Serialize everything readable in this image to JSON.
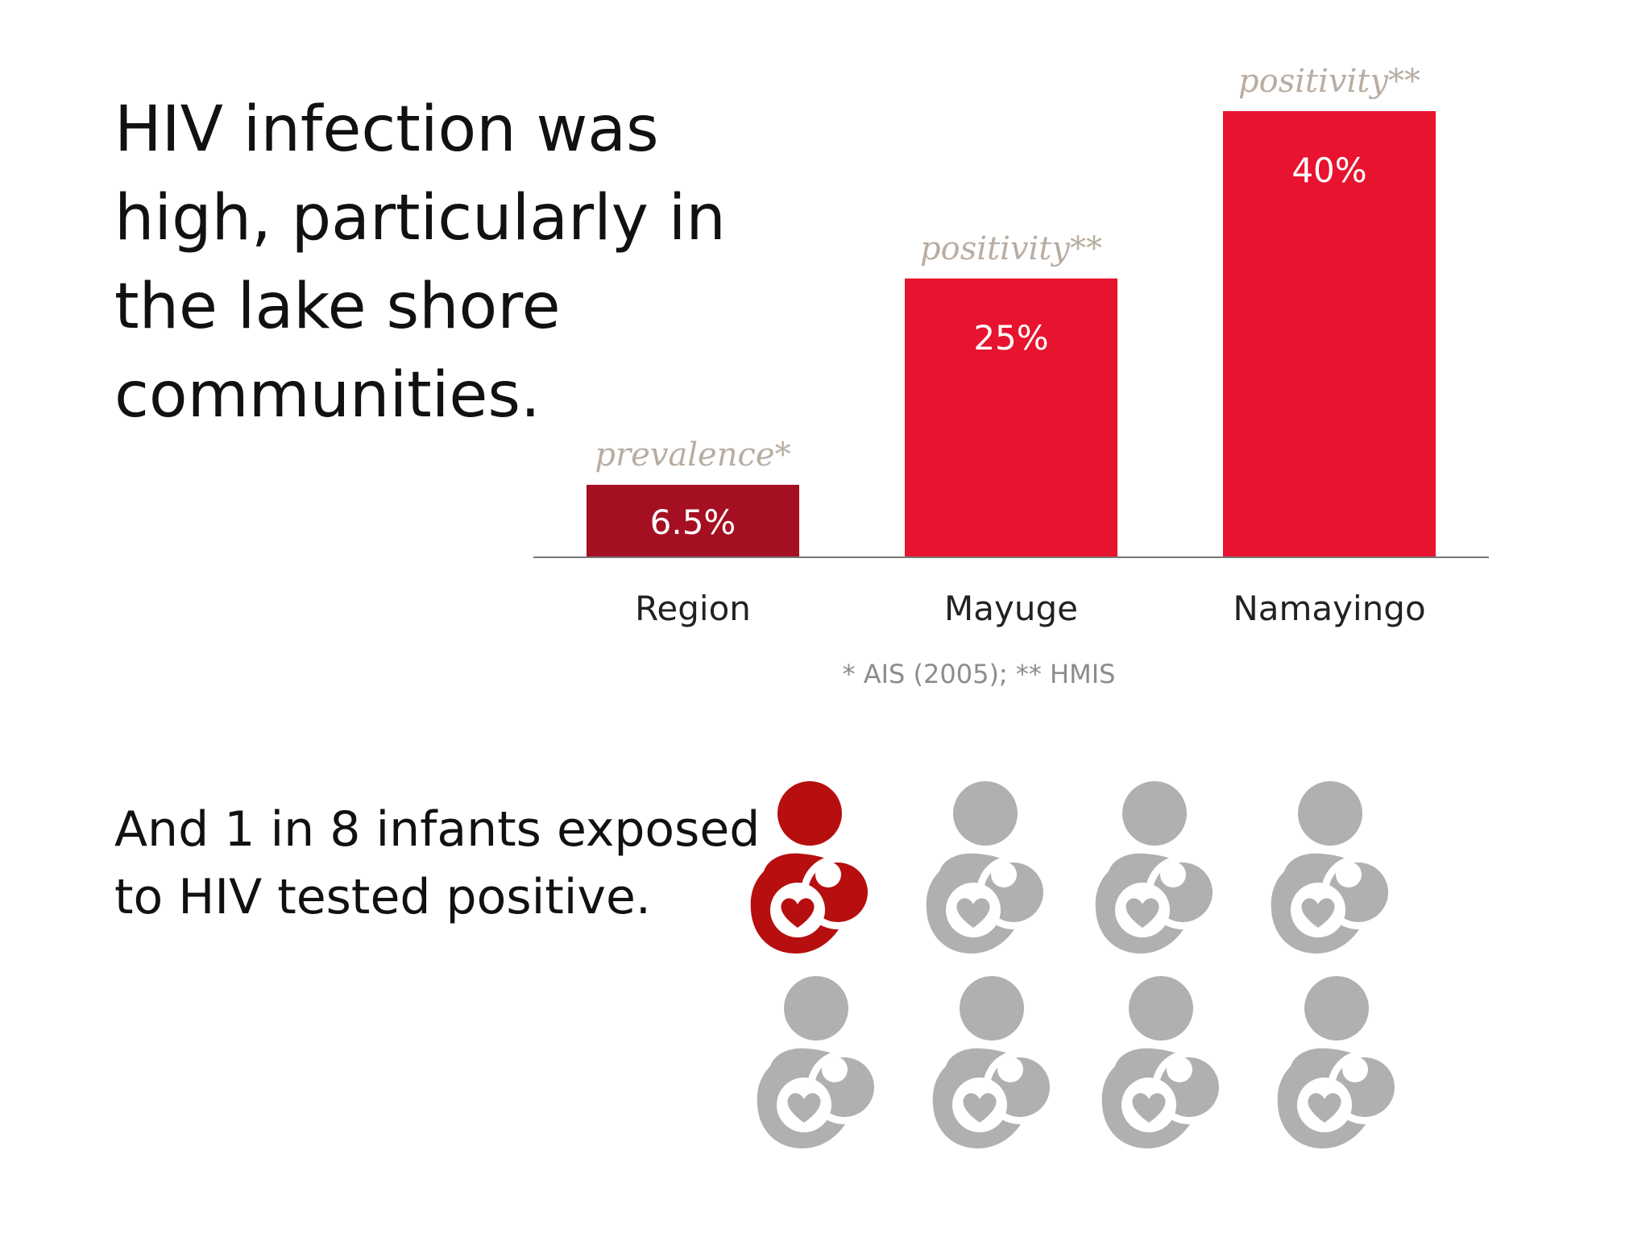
{
  "headline": {
    "lines": [
      "HIV infection was",
      "high, particularly in",
      "the lake shore",
      "communities."
    ]
  },
  "subtext": {
    "lines": [
      "And 1 in 8 infants exposed",
      "to HIV tested positive."
    ]
  },
  "chart_data": {
    "type": "bar",
    "categories": [
      "Region",
      "Mayuge",
      "Namayingo"
    ],
    "values": [
      6.5,
      25,
      40
    ],
    "value_labels": [
      "6.5%",
      "25%",
      "40%"
    ],
    "bar_annotations": [
      "prevalence*",
      "positivity**",
      "positivity**"
    ],
    "bar_colors": [
      "#a50f22",
      "#e8132f",
      "#e8132f"
    ],
    "footnote": "* AIS (2005); ** HMIS",
    "ylim": [
      0,
      40
    ],
    "grid": false
  },
  "infants": {
    "total": 8,
    "positive": 1,
    "positive_color": "#b70f0f",
    "other_color": "#b0b0b0"
  }
}
